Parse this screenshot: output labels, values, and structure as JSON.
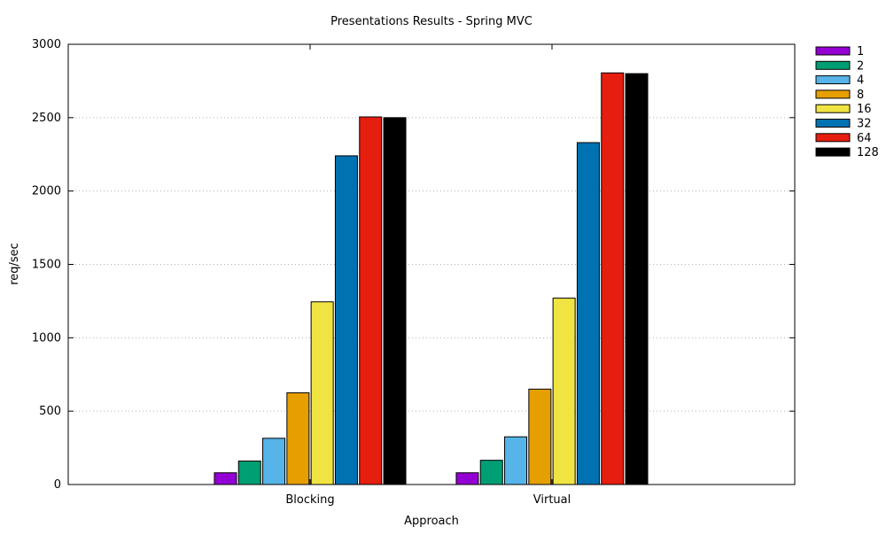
{
  "chart_data": {
    "type": "bar",
    "title": "Presentations Results - Spring MVC",
    "xlabel": "Approach",
    "ylabel": "req/sec",
    "categories": [
      "Blocking",
      "Virtual"
    ],
    "ylim": [
      0,
      3000
    ],
    "yticks": [
      0,
      500,
      1000,
      1500,
      2000,
      2500,
      3000
    ],
    "grid": "horizontal dotted",
    "legend_position": "top-right, outside plot",
    "series": [
      {
        "name": "1",
        "color": "#9400d3",
        "values": [
          80,
          80
        ]
      },
      {
        "name": "2",
        "color": "#009e73",
        "values": [
          160,
          165
        ]
      },
      {
        "name": "4",
        "color": "#56b4e9",
        "values": [
          315,
          325
        ]
      },
      {
        "name": "8",
        "color": "#e69f00",
        "values": [
          625,
          650
        ]
      },
      {
        "name": "16",
        "color": "#f0e442",
        "values": [
          1245,
          1270
        ]
      },
      {
        "name": "32",
        "color": "#0072b2",
        "values": [
          2240,
          2330
        ]
      },
      {
        "name": "64",
        "color": "#e51e10",
        "values": [
          2505,
          2805
        ]
      },
      {
        "name": "128",
        "color": "#000000",
        "values": [
          2500,
          2800
        ]
      }
    ]
  }
}
